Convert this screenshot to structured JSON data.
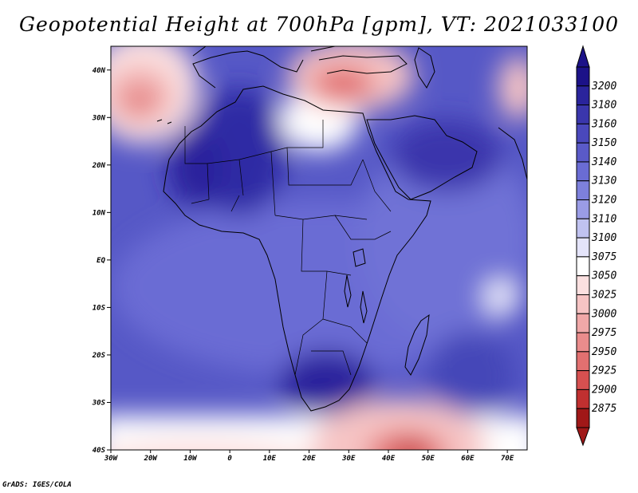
{
  "title": "Geopotential Height at 700hPa [gpm], VT: 2021033100",
  "footer": "GrADS: IGES/COLA",
  "map": {
    "lon_range": [
      -30,
      75
    ],
    "lat_range": [
      -40,
      45
    ],
    "lat_ticks": [
      {
        "value": 40,
        "label": "40N"
      },
      {
        "value": 30,
        "label": "30N"
      },
      {
        "value": 20,
        "label": "20N"
      },
      {
        "value": 10,
        "label": "10N"
      },
      {
        "value": 0,
        "label": "EQ"
      },
      {
        "value": -10,
        "label": "10S"
      },
      {
        "value": -20,
        "label": "20S"
      },
      {
        "value": -30,
        "label": "30S"
      },
      {
        "value": -40,
        "label": "40S"
      }
    ],
    "lon_ticks": [
      {
        "value": -30,
        "label": "30W"
      },
      {
        "value": -20,
        "label": "20W"
      },
      {
        "value": -10,
        "label": "10W"
      },
      {
        "value": 0,
        "label": "0"
      },
      {
        "value": 10,
        "label": "10E"
      },
      {
        "value": 20,
        "label": "20E"
      },
      {
        "value": 30,
        "label": "30E"
      },
      {
        "value": 40,
        "label": "40E"
      },
      {
        "value": 50,
        "label": "50E"
      },
      {
        "value": 60,
        "label": "60E"
      },
      {
        "value": 70,
        "label": "70E"
      }
    ]
  },
  "colorbar": {
    "levels": [
      {
        "label": "3200",
        "color": "#1c1288"
      },
      {
        "label": "3180",
        "color": "#2a249c"
      },
      {
        "label": "3160",
        "color": "#3a36ac"
      },
      {
        "label": "3150",
        "color": "#4a48bc"
      },
      {
        "label": "3140",
        "color": "#5a5ac8"
      },
      {
        "label": "3130",
        "color": "#6a6cd4"
      },
      {
        "label": "3120",
        "color": "#7d80dc"
      },
      {
        "label": "3110",
        "color": "#9a9ce6"
      },
      {
        "label": "3100",
        "color": "#c0c2f0"
      },
      {
        "label": "3075",
        "color": "#e4e4fa"
      },
      {
        "label": "3050",
        "color": "#ffffff"
      },
      {
        "label": "3025",
        "color": "#fbe0e0"
      },
      {
        "label": "3000",
        "color": "#f6c4c4"
      },
      {
        "label": "2975",
        "color": "#f0a8a8"
      },
      {
        "label": "2950",
        "color": "#ea8c8c"
      },
      {
        "label": "2925",
        "color": "#e27070"
      },
      {
        "label": "2900",
        "color": "#d65050"
      },
      {
        "label": "2875",
        "color": "#c03030"
      },
      {
        "label": "",
        "color": "#a01818"
      }
    ],
    "top_arrow_color": "#1c1288",
    "bottom_arrow_color": "#a01818"
  }
}
